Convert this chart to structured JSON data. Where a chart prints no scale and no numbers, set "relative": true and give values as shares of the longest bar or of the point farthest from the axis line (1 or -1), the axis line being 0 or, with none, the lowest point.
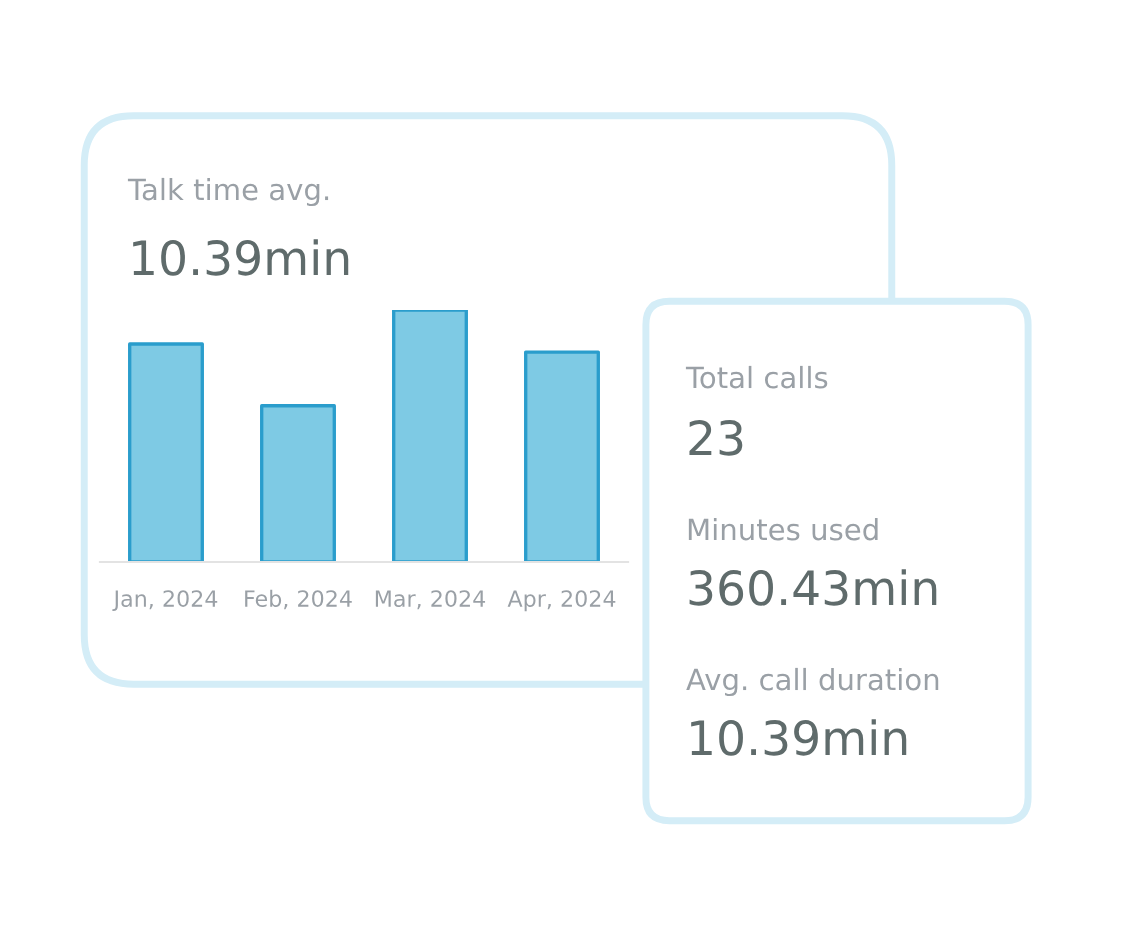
{
  "chart_data": [
    {
      "type": "bar",
      "title": "Talk time avg.",
      "subtitle": "10.39min",
      "relative": true,
      "categories": [
        "Jan, 2024",
        "Feb, 2024",
        "Mar, 2024",
        "Apr, 2024"
      ],
      "values": [
        0.865,
        0.62,
        1,
        0.833
      ],
      "color": "#7ecae4",
      "grid": false,
      "legend": false
    },
    {
      "type": "other",
      "annotations": [
        "Total calls",
        "23",
        "Minutes used",
        "360.43min",
        "Avg. call duration",
        "10.39min"
      ]
    }
  ]
}
